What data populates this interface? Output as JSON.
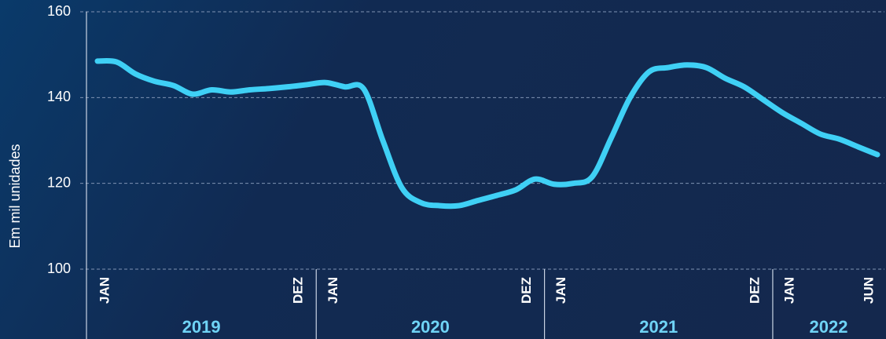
{
  "chart_data": {
    "type": "line",
    "ylabel": "Em mil unidades",
    "categories": [
      "JAN",
      null,
      null,
      null,
      null,
      null,
      null,
      null,
      null,
      null,
      null,
      "DEZ",
      "JAN",
      null,
      null,
      null,
      null,
      null,
      null,
      null,
      null,
      null,
      null,
      "DEZ",
      "JAN",
      null,
      null,
      null,
      null,
      null,
      null,
      null,
      null,
      null,
      null,
      "DEZ",
      "JAN",
      null,
      null,
      null,
      null,
      "JUN"
    ],
    "years": [
      "2019",
      "2020",
      "2021",
      "2022"
    ],
    "series": [
      {
        "name": null,
        "color": "#3fd0f5",
        "values": [
          148.5,
          148.3,
          145.5,
          143.8,
          142.8,
          140.8,
          141.8,
          141.3,
          141.8,
          142.1,
          142.5,
          143,
          143.5,
          142.5,
          142,
          130,
          119,
          115.5,
          114.8,
          114.8,
          116,
          117.2,
          118.5,
          121,
          119.8,
          120,
          121.5,
          130.5,
          140,
          146,
          147,
          147.6,
          147,
          144.5,
          142.5,
          139.5,
          136.5,
          134,
          131.5,
          130.3,
          128.5,
          126.7
        ]
      }
    ],
    "ylim": [
      100,
      160
    ],
    "yticks": [
      100,
      120,
      140,
      160
    ],
    "grid": true
  }
}
